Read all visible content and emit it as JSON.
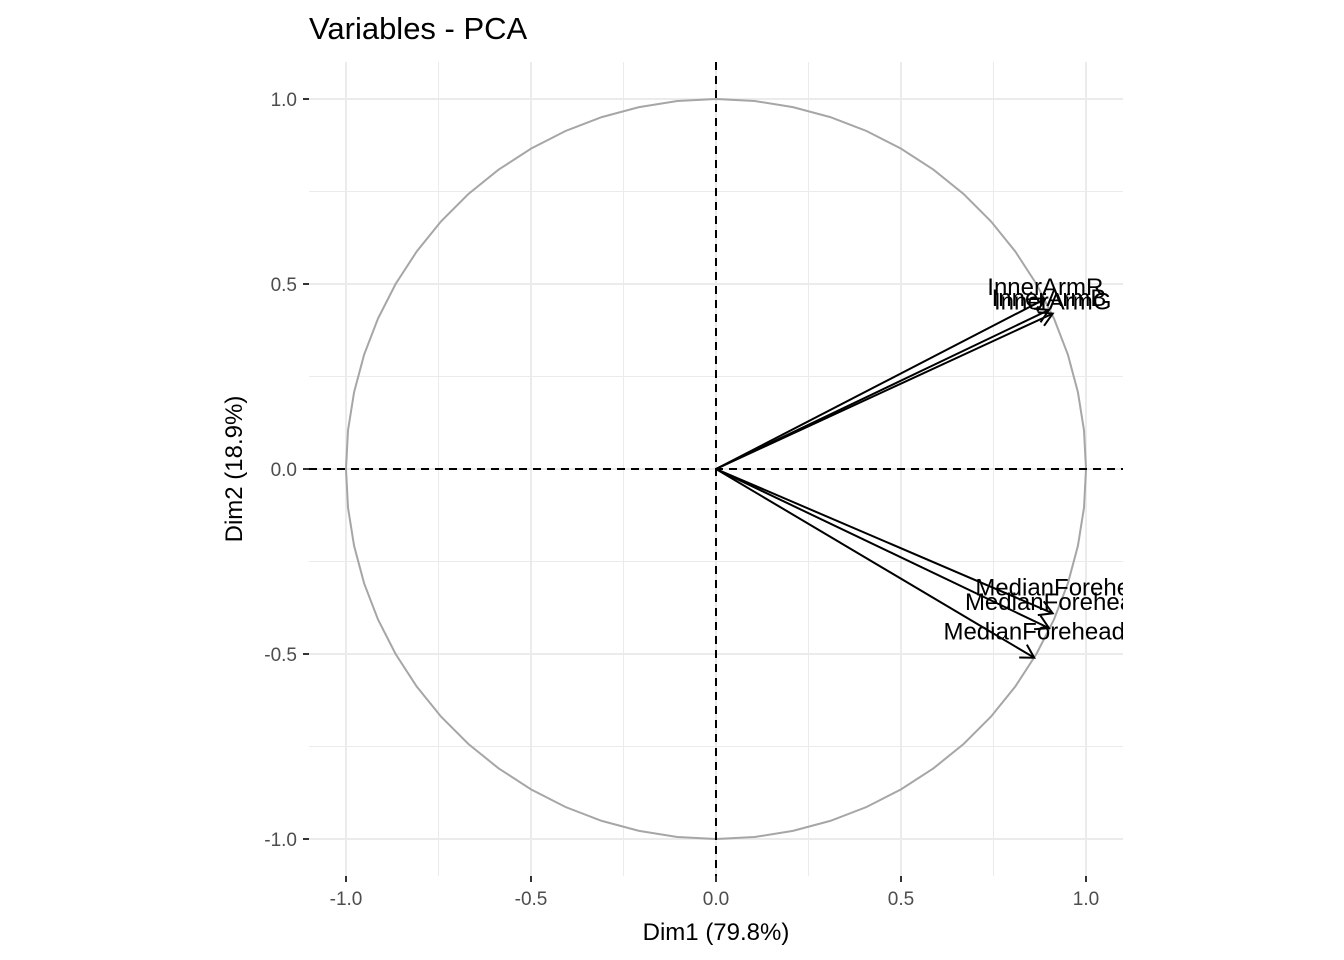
{
  "chart_data": {
    "type": "scatter",
    "subtype": "pca-variable-correlation-circle",
    "title": "Variables - PCA",
    "xlabel": "Dim1 (79.8%)",
    "ylabel": "Dim2 (18.9%)",
    "xlim": [
      -1.1,
      1.1
    ],
    "ylim": [
      -1.1,
      1.1
    ],
    "x_ticks": [
      "-1.0",
      "-0.5",
      "0.0",
      "0.5",
      "1.0"
    ],
    "y_ticks": [
      "1.0",
      "0.5",
      "0.0",
      "-0.5",
      "-1.0"
    ],
    "x_tick_values": [
      -1.0,
      -0.5,
      0.0,
      0.5,
      1.0
    ],
    "y_tick_values": [
      1.0,
      0.5,
      0.0,
      -0.5,
      -1.0
    ],
    "grid": true,
    "reference_lines": [
      {
        "axis": "x",
        "value": 0,
        "style": "dashed"
      },
      {
        "axis": "y",
        "value": 0,
        "style": "dashed"
      }
    ],
    "unit_circle": true,
    "variables": [
      {
        "label": "InnerArmR",
        "x": 0.89,
        "y": 0.46
      },
      {
        "label": "InnerArmB",
        "x": 0.9,
        "y": 0.43
      },
      {
        "label": "InnerArmG",
        "x": 0.91,
        "y": 0.42
      },
      {
        "label": "MedianForehe",
        "x": 0.91,
        "y": -0.39
      },
      {
        "label": "MedianForehea",
        "x": 0.9,
        "y": -0.43
      },
      {
        "label": "MedianForehead",
        "x": 0.86,
        "y": -0.51
      }
    ]
  },
  "colors": {
    "grid": "#ebebeb",
    "circle": "#a6a6a6",
    "arrow": "#000000",
    "tick_text": "#4d4d4d"
  }
}
